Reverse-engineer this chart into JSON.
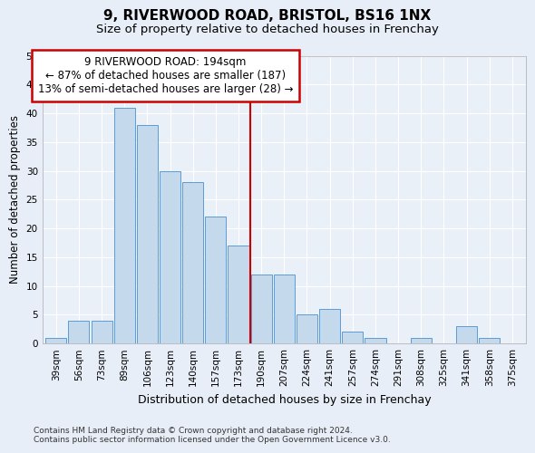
{
  "title": "9, RIVERWOOD ROAD, BRISTOL, BS16 1NX",
  "subtitle": "Size of property relative to detached houses in Frenchay",
  "xlabel": "Distribution of detached houses by size in Frenchay",
  "ylabel": "Number of detached properties",
  "categories": [
    "39sqm",
    "56sqm",
    "73sqm",
    "89sqm",
    "106sqm",
    "123sqm",
    "140sqm",
    "157sqm",
    "173sqm",
    "190sqm",
    "207sqm",
    "224sqm",
    "241sqm",
    "257sqm",
    "274sqm",
    "291sqm",
    "308sqm",
    "325sqm",
    "341sqm",
    "358sqm",
    "375sqm"
  ],
  "values": [
    1,
    4,
    4,
    41,
    38,
    30,
    28,
    22,
    17,
    12,
    12,
    5,
    6,
    2,
    1,
    0,
    1,
    0,
    3,
    1,
    0
  ],
  "bar_color": "#c5d9ed",
  "bar_edge_color": "#5b9bd5",
  "highlight_idx": 9,
  "highlight_color": "#cc0000",
  "annotation_text": "9 RIVERWOOD ROAD: 194sqm\n← 87% of detached houses are smaller (187)\n13% of semi-detached houses are larger (28) →",
  "annotation_box_color": "#ffffff",
  "annotation_box_edge": "#cc0000",
  "ylim": [
    0,
    50
  ],
  "yticks": [
    0,
    5,
    10,
    15,
    20,
    25,
    30,
    35,
    40,
    45,
    50
  ],
  "background_color": "#e8eef7",
  "plot_bg_color": "#eaf0f8",
  "footer": "Contains HM Land Registry data © Crown copyright and database right 2024.\nContains public sector information licensed under the Open Government Licence v3.0.",
  "title_fontsize": 11,
  "subtitle_fontsize": 9.5,
  "xlabel_fontsize": 9,
  "ylabel_fontsize": 8.5,
  "tick_fontsize": 7.5,
  "footer_fontsize": 6.5
}
